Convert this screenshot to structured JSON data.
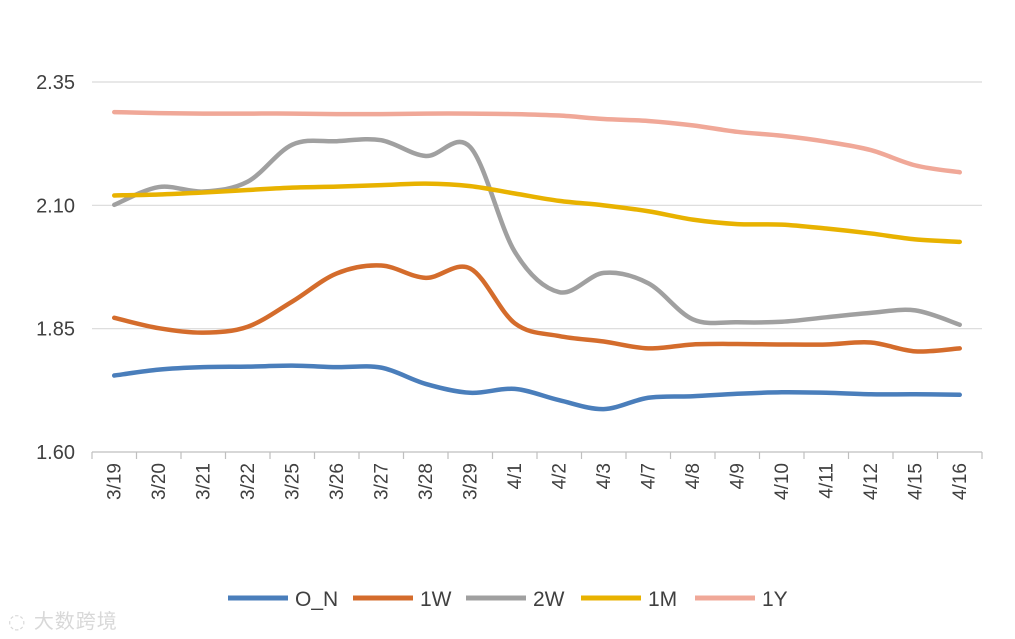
{
  "chart_data": {
    "type": "line",
    "title": "",
    "xlabel": "",
    "ylabel": "",
    "ylim": [
      1.6,
      2.35
    ],
    "yticks": [
      "1.60",
      "1.85",
      "2.10",
      "2.35"
    ],
    "categories": [
      "3/19",
      "3/20",
      "3/21",
      "3/22",
      "3/25",
      "3/26",
      "3/27",
      "3/28",
      "3/29",
      "4/1",
      "4/2",
      "4/3",
      "4/7",
      "4/8",
      "4/9",
      "4/10",
      "4/11",
      "4/12",
      "4/15",
      "4/16"
    ],
    "series": [
      {
        "name": "O_N",
        "color": "#4a7ebb",
        "values": [
          1.755,
          1.767,
          1.772,
          1.773,
          1.775,
          1.772,
          1.771,
          1.738,
          1.72,
          1.728,
          1.705,
          1.687,
          1.71,
          1.713,
          1.718,
          1.721,
          1.72,
          1.717,
          1.717,
          1.716
        ]
      },
      {
        "name": "1W",
        "color": "#d46c2c",
        "values": [
          1.872,
          1.851,
          1.842,
          1.854,
          1.905,
          1.962,
          1.978,
          1.953,
          1.972,
          1.861,
          1.835,
          1.824,
          1.81,
          1.818,
          1.819,
          1.818,
          1.818,
          1.822,
          1.804,
          1.81
        ]
      },
      {
        "name": "2W",
        "color": "#a0a0a0",
        "values": [
          2.101,
          2.137,
          2.128,
          2.148,
          2.223,
          2.23,
          2.232,
          2.2,
          2.218,
          2.006,
          1.924,
          1.963,
          1.942,
          1.869,
          1.863,
          1.864,
          1.873,
          1.882,
          1.887,
          1.858
        ]
      },
      {
        "name": "1M",
        "color": "#e8b200",
        "values": [
          2.12,
          2.122,
          2.126,
          2.131,
          2.136,
          2.138,
          2.141,
          2.144,
          2.139,
          2.124,
          2.109,
          2.1,
          2.088,
          2.071,
          2.062,
          2.061,
          2.053,
          2.043,
          2.031,
          2.026
        ]
      },
      {
        "name": "1Y",
        "color": "#f0a898",
        "values": [
          2.289,
          2.287,
          2.286,
          2.286,
          2.286,
          2.285,
          2.285,
          2.286,
          2.286,
          2.285,
          2.282,
          2.275,
          2.271,
          2.262,
          2.249,
          2.241,
          2.229,
          2.212,
          2.181,
          2.167
        ]
      }
    ],
    "grid": true,
    "legend_position": "bottom"
  },
  "watermark": "大数跨境"
}
